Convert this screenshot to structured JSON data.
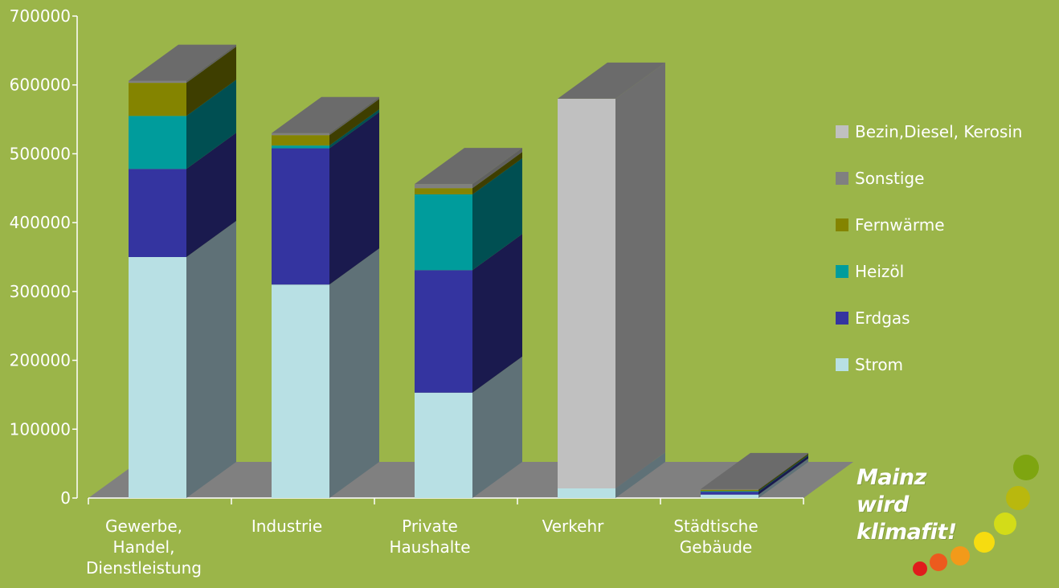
{
  "colors": {
    "background": "#9bb549",
    "floor": "#808080",
    "axis": "#ffffff",
    "text": "#ffffff"
  },
  "logo": {
    "line1": "Mainz wird",
    "line2": "klimafit!",
    "dot_colors": [
      "#e01c1c",
      "#ec5a1e",
      "#f29a1a",
      "#f6dc10",
      "#d3dc18",
      "#b9b80e",
      "#7ea510"
    ]
  },
  "chart_data": {
    "type": "bar",
    "stacked": true,
    "three_d": true,
    "categories": [
      [
        "Gewerbe,",
        "Handel,",
        "Dienstleistung"
      ],
      [
        "Industrie"
      ],
      [
        "Private",
        "Haushalte"
      ],
      [
        "Verkehr"
      ],
      [
        "Städtische",
        "Gebäude"
      ]
    ],
    "y_ticks": [
      "0",
      "100000",
      "200000",
      "300000",
      "400000",
      "500000",
      "600000",
      "700000"
    ],
    "ylim": [
      0,
      700000
    ],
    "legend_position": "right",
    "series": [
      {
        "name": "Strom",
        "color": "#b8e0e4",
        "side": "#5f7177",
        "values": [
          350000,
          310000,
          153000,
          14000,
          5000
        ]
      },
      {
        "name": "Erdgas",
        "color": "#3434a0",
        "side": "#1a1a4e",
        "values": [
          128000,
          198000,
          178000,
          0,
          4000
        ]
      },
      {
        "name": "Heizöl",
        "color": "#009c9c",
        "side": "#004f52",
        "values": [
          77000,
          4000,
          110000,
          0,
          1000
        ]
      },
      {
        "name": "Fernwärme",
        "color": "#848400",
        "side": "#3e3e00",
        "values": [
          48000,
          15000,
          9000,
          0,
          2000
        ]
      },
      {
        "name": "Sonstige",
        "color": "#808080",
        "side": "#606060",
        "values": [
          3000,
          3000,
          6000,
          0,
          1000
        ]
      },
      {
        "name": "Bezin,Diesel, Kerosin",
        "color": "#c0c0c0",
        "side": "#6e6e6e",
        "values": [
          0,
          0,
          0,
          566000,
          0
        ]
      }
    ]
  }
}
